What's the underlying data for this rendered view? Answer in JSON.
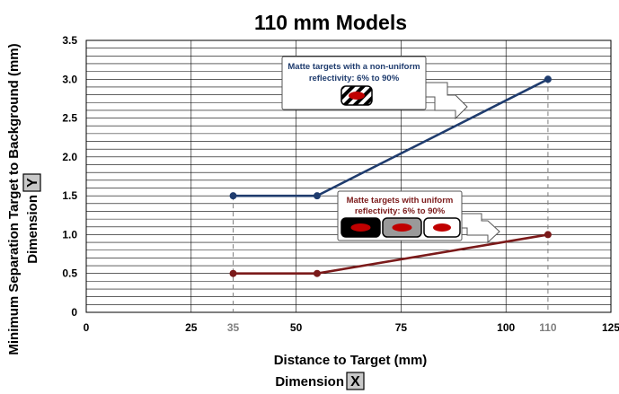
{
  "chart_data": {
    "type": "line",
    "title": "110 mm Models",
    "xlabel": "Distance to Target (mm)",
    "xlabel_dimension_prefix": "Dimension",
    "xlabel_dimension_letter": "X",
    "ylabel": "Minimum Separation Target to Background (mm)",
    "ylabel_dimension_prefix": "Dimension",
    "ylabel_dimension_letter": "Y",
    "xlim": [
      0,
      125
    ],
    "ylim": [
      0,
      3.5
    ],
    "x_ticks": [
      "0",
      "25",
      "35",
      "50",
      "75",
      "100",
      "110",
      "125"
    ],
    "x_tick_values": [
      0,
      25,
      35,
      50,
      75,
      100,
      110,
      125
    ],
    "x_ticks_highlighted": [
      "35",
      "110"
    ],
    "y_ticks": [
      "0",
      "0.5",
      "1.0",
      "1.5",
      "2.0",
      "2.5",
      "3.0",
      "3.5"
    ],
    "y_tick_values": [
      0,
      0.5,
      1.0,
      1.5,
      2.0,
      2.5,
      3.0,
      3.5
    ],
    "grid": true,
    "series": [
      {
        "x": [
          35,
          55,
          110
        ],
        "y": [
          1.5,
          1.5,
          3.0
        ],
        "color": "#1f3c6e"
      },
      {
        "x": [
          35,
          55,
          110
        ],
        "y": [
          0.5,
          0.5,
          1.0
        ],
        "color": "#7b1a1a"
      }
    ],
    "callouts": [
      {
        "text_lines": [
          "Matte targets with a non-uniform",
          "reflectivity: 6% to 90%"
        ],
        "color": "#1f3c6e"
      },
      {
        "text_lines": [
          "Matte targets with uniform",
          "reflectivity: 6% to 90%"
        ],
        "color": "#7b1a1a"
      }
    ],
    "colors": {
      "grid": "#000000",
      "target_spot": "#c00000"
    }
  }
}
